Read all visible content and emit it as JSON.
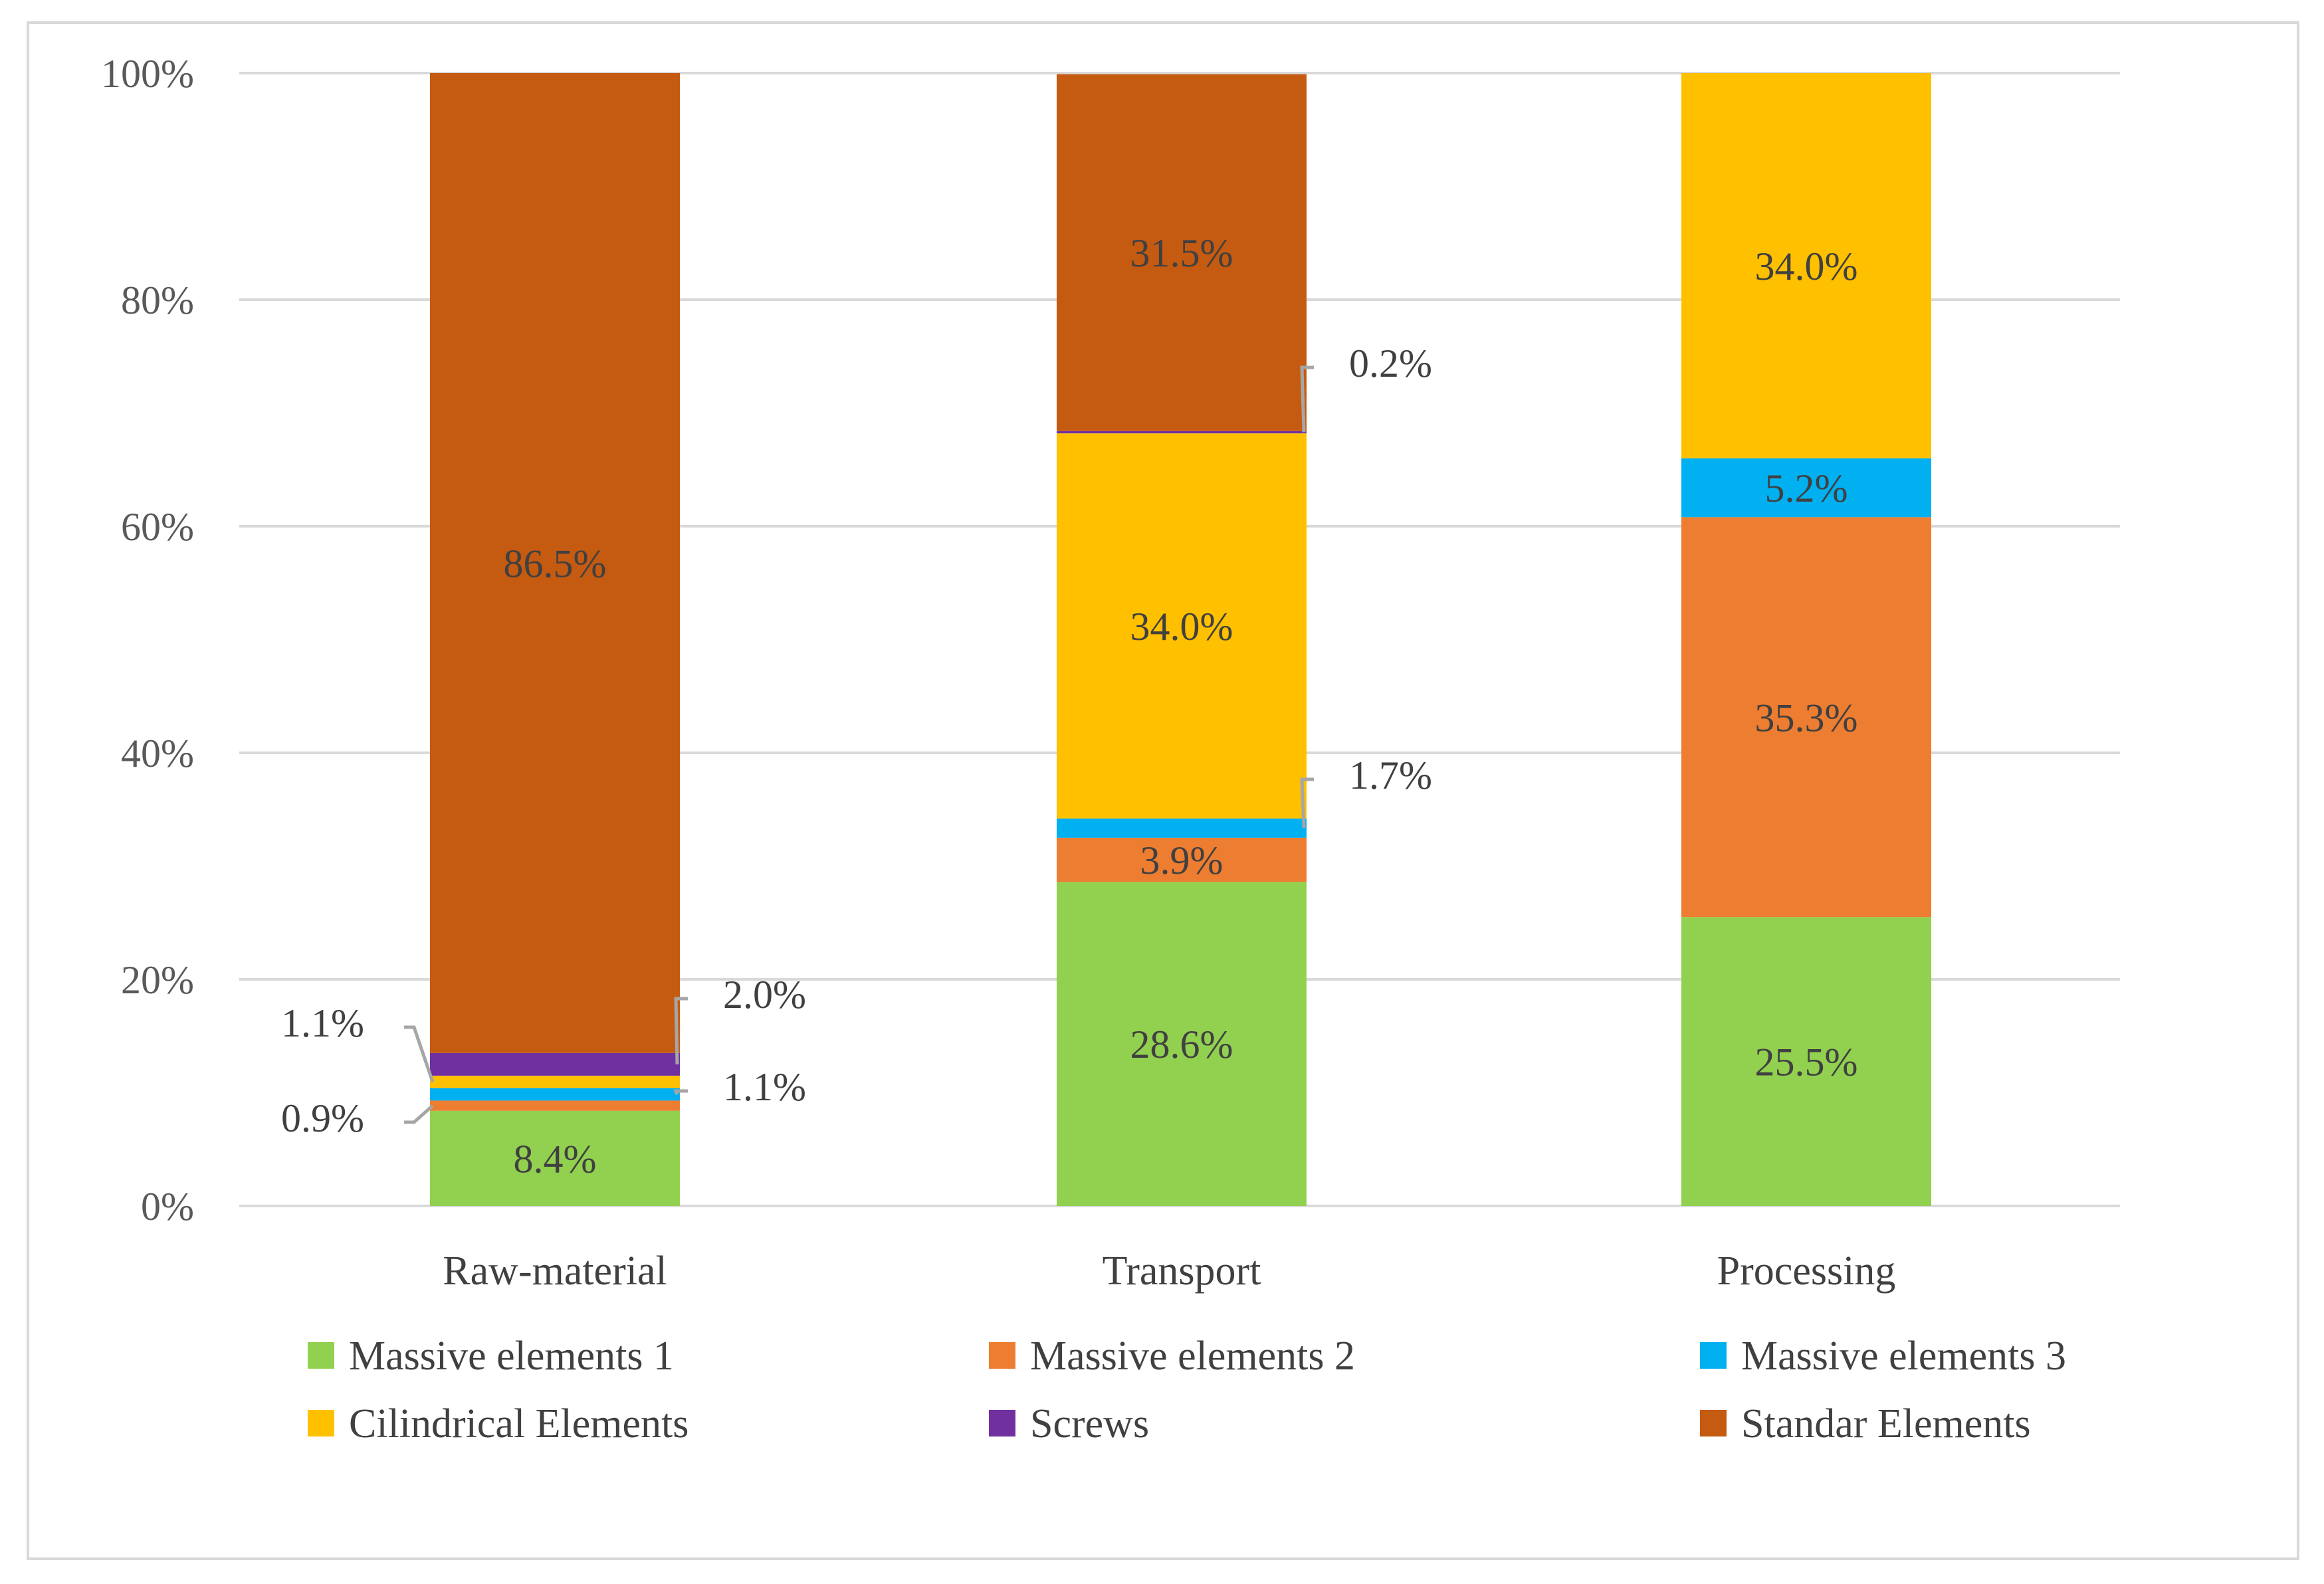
{
  "chart_data": {
    "type": "bar",
    "stacked": true,
    "categories": [
      "Raw-material",
      "Transport",
      "Processing"
    ],
    "ylim": [
      0,
      100
    ],
    "yticks": [
      "0%",
      "20%",
      "40%",
      "60%",
      "80%",
      "100%"
    ],
    "grid": true,
    "legend_position": "bottom",
    "series": [
      {
        "name": "Massive elements 1",
        "color": "#92d050",
        "values": [
          8.4,
          28.6,
          25.5
        ],
        "labels": [
          "8.4%",
          "28.6%",
          "25.5%"
        ]
      },
      {
        "name": "Massive elements 2",
        "color": "#ed7d31",
        "values": [
          0.9,
          3.9,
          35.3
        ],
        "labels": [
          "0.9%",
          "3.9%",
          "35.3%"
        ]
      },
      {
        "name": "Massive elements 3",
        "color": "#00b0f0",
        "values": [
          1.1,
          1.7,
          5.2
        ],
        "labels": [
          "1.1%",
          "1.7%",
          "5.2%"
        ]
      },
      {
        "name": "Cilindrical Elements",
        "color": "#ffc000",
        "values": [
          1.1,
          34.0,
          34.0
        ],
        "labels": [
          "1.1%",
          "34.0%",
          "34.0%"
        ]
      },
      {
        "name": "Screws",
        "color": "#7030a0",
        "values": [
          2.0,
          0.2,
          0
        ],
        "labels": [
          "2.0%",
          "0.2%",
          ""
        ]
      },
      {
        "name": "Standar Elements",
        "color": "#c55a11",
        "values": [
          86.5,
          31.5,
          0
        ],
        "labels": [
          "86.5%",
          "31.5%",
          ""
        ]
      }
    ]
  }
}
